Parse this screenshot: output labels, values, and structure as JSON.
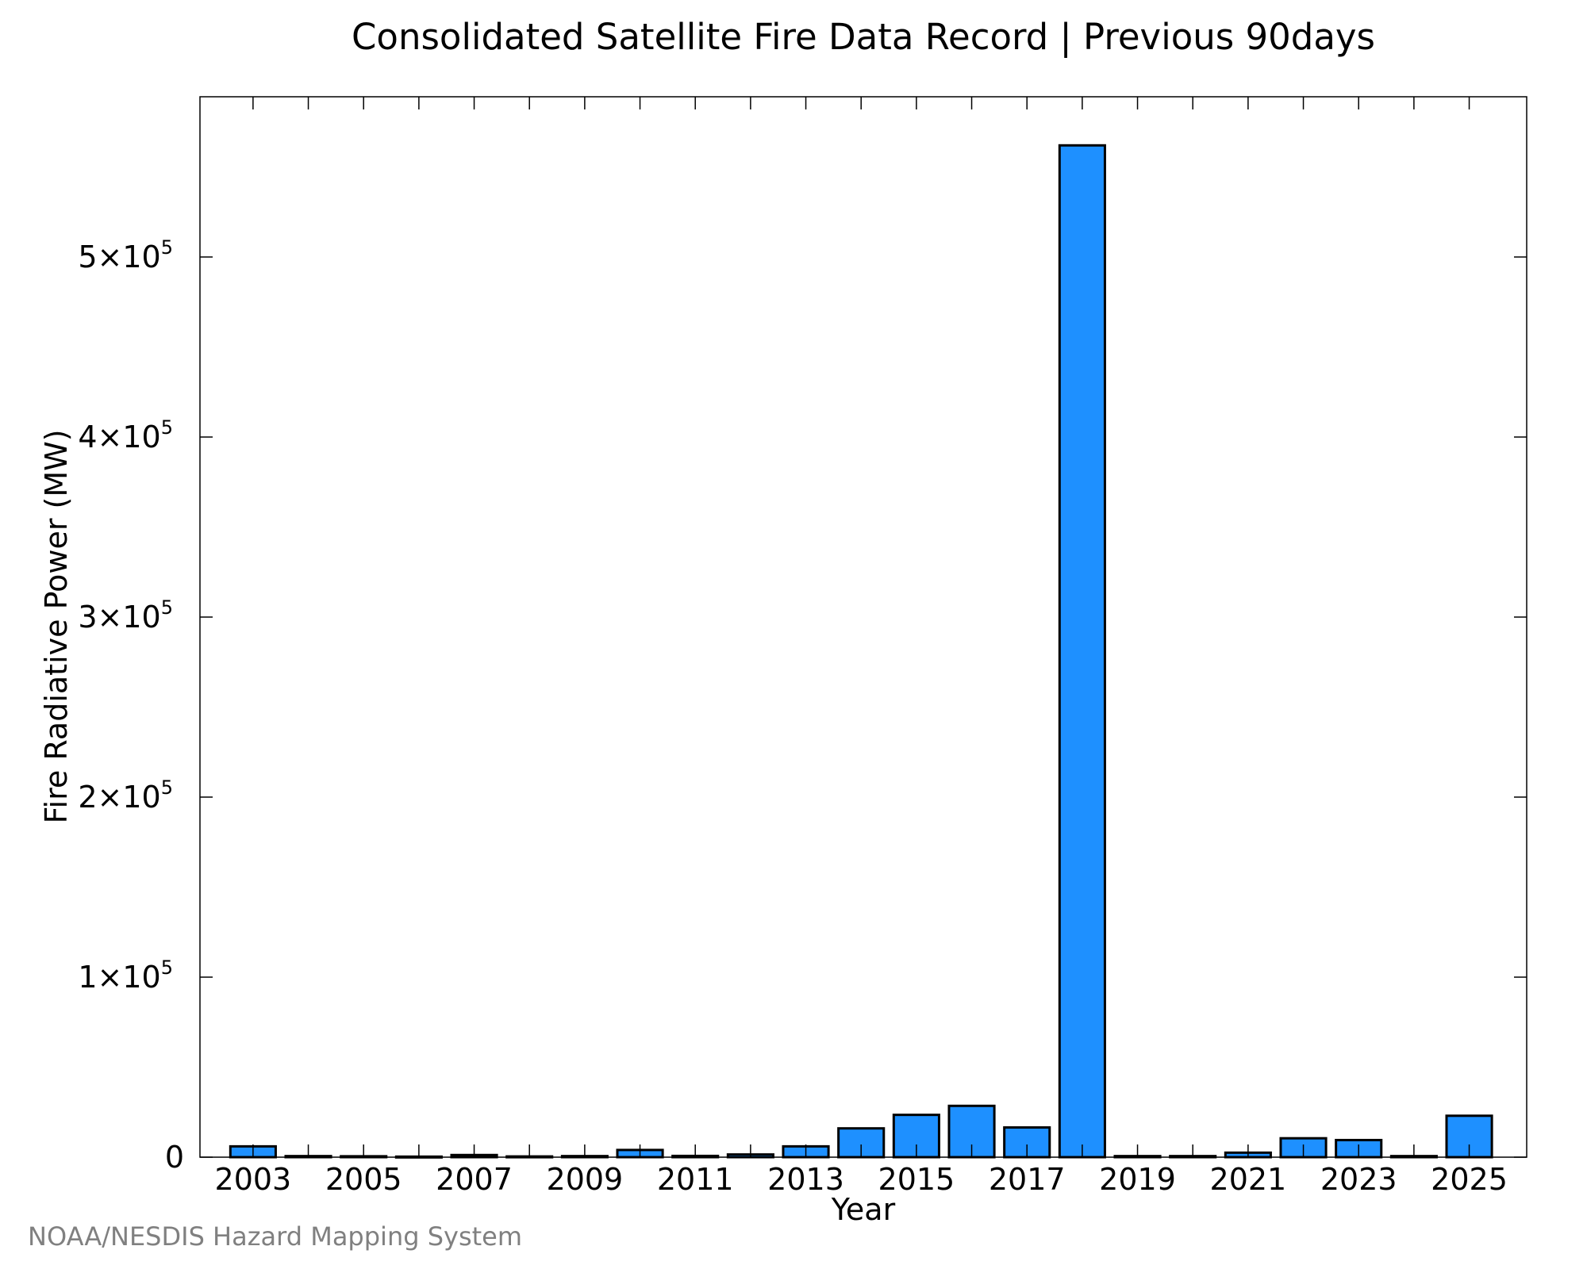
{
  "credit": "NOAA/NESDIS Hazard Mapping System",
  "chart_data": {
    "type": "bar",
    "title": "Consolidated Satellite Fire Data Record | Previous 90days",
    "xlabel": "Year",
    "ylabel": "Fire Radiative Power (MW)",
    "categories": [
      2003,
      2004,
      2005,
      2006,
      2007,
      2008,
      2009,
      2010,
      2011,
      2012,
      2013,
      2014,
      2015,
      2016,
      2017,
      2018,
      2019,
      2020,
      2021,
      2022,
      2023,
      2024,
      2025
    ],
    "values": [
      6000,
      600,
      500,
      300,
      1200,
      400,
      600,
      4000,
      700,
      1500,
      6000,
      16000,
      23500,
      28500,
      16500,
      562000,
      600,
      600,
      2500,
      10500,
      9500,
      600,
      23000
    ],
    "xticks": [
      "2003",
      "2005",
      "2007",
      "2009",
      "2011",
      "2013",
      "2015",
      "2017",
      "2019",
      "2021",
      "2023",
      "2025"
    ],
    "yticks": [
      {
        "value": 0,
        "mant": "0",
        "exp": ""
      },
      {
        "value": 100000,
        "mant": "1×10",
        "exp": "5"
      },
      {
        "value": 200000,
        "mant": "2×10",
        "exp": "5"
      },
      {
        "value": 300000,
        "mant": "3×10",
        "exp": "5"
      },
      {
        "value": 400000,
        "mant": "4×10",
        "exp": "5"
      },
      {
        "value": 500000,
        "mant": "5×10",
        "exp": "5"
      }
    ],
    "ylim": [
      0,
      589000
    ],
    "xlim": [
      2002.04,
      2026.04
    ],
    "bar_color": "#1e90ff",
    "edge_color": "#000000",
    "grid": false
  }
}
